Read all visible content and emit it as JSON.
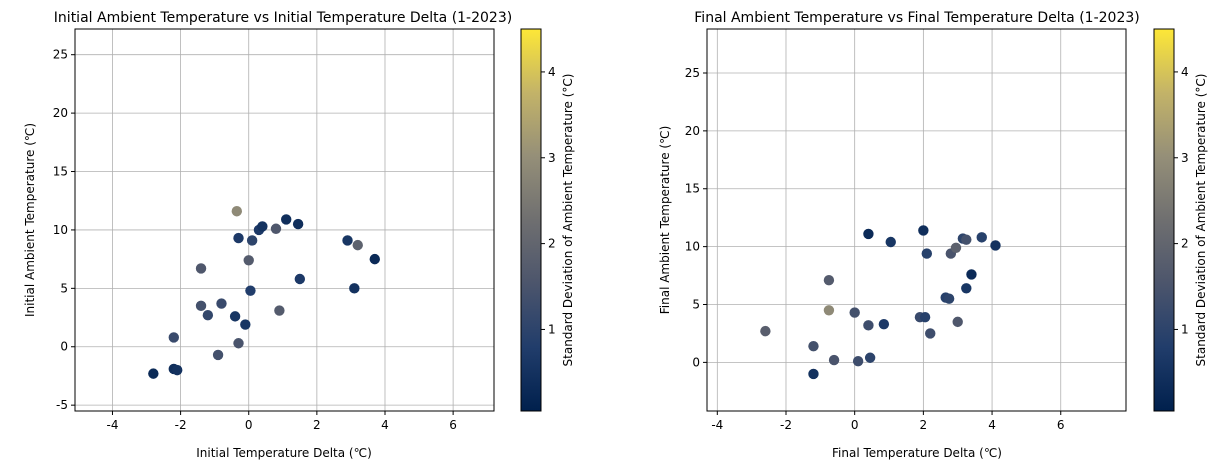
{
  "colors": {
    "cmap": [
      "#00204d",
      "#213d6b",
      "#4c556c",
      "#6f6f70",
      "#958f78",
      "#c3b368",
      "#fde737"
    ],
    "grid": "#b0b0b0",
    "axis": "#000000"
  },
  "colorbar": {
    "label": "Standard Deviation of Ambient Temperature (°C)",
    "range": [
      0.05,
      4.5
    ],
    "ticks": [
      "1",
      "2",
      "3",
      "4"
    ]
  },
  "chart_data": [
    {
      "type": "scatter",
      "title": "Initial Ambient Temperature vs Initial Temperature Delta (1-2023)",
      "xlabel": "Initial Temperature Delta (℃)",
      "ylabel": "Initial Ambient Temperature (℃)",
      "xlim": [
        -5.1,
        7.2
      ],
      "ylim": [
        -5.5,
        27.2
      ],
      "xticks": [
        "-4",
        "-2",
        "0",
        "2",
        "4",
        "6"
      ],
      "yticks": [
        "-5",
        "0",
        "5",
        "10",
        "15",
        "20",
        "25"
      ],
      "grid": true,
      "points": [
        {
          "x": -2.8,
          "y": -2.3,
          "c": 0.3
        },
        {
          "x": -2.2,
          "y": -1.9,
          "c": 0.4
        },
        {
          "x": -2.1,
          "y": -2.0,
          "c": 0.5
        },
        {
          "x": -2.2,
          "y": 0.8,
          "c": 1.2
        },
        {
          "x": -0.9,
          "y": -0.7,
          "c": 1.4
        },
        {
          "x": -0.3,
          "y": 0.3,
          "c": 1.5
        },
        {
          "x": -1.4,
          "y": 3.5,
          "c": 1.4
        },
        {
          "x": -1.2,
          "y": 2.7,
          "c": 1.1
        },
        {
          "x": -0.8,
          "y": 3.7,
          "c": 1.2
        },
        {
          "x": -0.4,
          "y": 2.6,
          "c": 0.6
        },
        {
          "x": -0.1,
          "y": 1.9,
          "c": 0.6
        },
        {
          "x": 0.05,
          "y": 4.8,
          "c": 0.8
        },
        {
          "x": 0.9,
          "y": 3.1,
          "c": 1.7
        },
        {
          "x": -1.4,
          "y": 6.7,
          "c": 1.6
        },
        {
          "x": 0.0,
          "y": 7.4,
          "c": 1.7
        },
        {
          "x": -0.3,
          "y": 9.3,
          "c": 0.7
        },
        {
          "x": 0.1,
          "y": 9.1,
          "c": 1.0
        },
        {
          "x": 0.3,
          "y": 10.0,
          "c": 0.7
        },
        {
          "x": 0.4,
          "y": 10.3,
          "c": 0.5
        },
        {
          "x": 0.8,
          "y": 10.1,
          "c": 1.6
        },
        {
          "x": 1.1,
          "y": 10.9,
          "c": 0.4
        },
        {
          "x": 1.45,
          "y": 10.5,
          "c": 0.4
        },
        {
          "x": -0.35,
          "y": 11.6,
          "c": 2.9
        },
        {
          "x": 1.5,
          "y": 5.8,
          "c": 0.7
        },
        {
          "x": 2.9,
          "y": 9.1,
          "c": 0.6
        },
        {
          "x": 3.2,
          "y": 8.7,
          "c": 1.9
        },
        {
          "x": 3.1,
          "y": 5.0,
          "c": 0.5
        },
        {
          "x": 3.7,
          "y": 7.5,
          "c": 0.3
        }
      ]
    },
    {
      "type": "scatter",
      "title": "Final Ambient Temperature vs Final Temperature Delta (1-2023)",
      "xlabel": "Final Temperature Delta (℃)",
      "ylabel": "Final Ambient Temperature (℃)",
      "xlim": [
        -4.3,
        7.9
      ],
      "ylim": [
        -4.2,
        28.8
      ],
      "xticks": [
        "-4",
        "-2",
        "0",
        "2",
        "4",
        "6"
      ],
      "yticks": [
        "0",
        "5",
        "10",
        "15",
        "20",
        "25"
      ],
      "grid": true,
      "points": [
        {
          "x": -2.6,
          "y": 2.7,
          "c": 1.8
        },
        {
          "x": -1.2,
          "y": 1.4,
          "c": 1.4
        },
        {
          "x": -1.2,
          "y": -1.0,
          "c": 0.5
        },
        {
          "x": -0.6,
          "y": 0.2,
          "c": 1.5
        },
        {
          "x": -0.75,
          "y": 7.1,
          "c": 1.7
        },
        {
          "x": -0.75,
          "y": 4.5,
          "c": 2.9
        },
        {
          "x": 0.0,
          "y": 4.3,
          "c": 1.4
        },
        {
          "x": 0.1,
          "y": 0.1,
          "c": 1.3
        },
        {
          "x": 0.4,
          "y": 3.2,
          "c": 1.3
        },
        {
          "x": 0.45,
          "y": 0.4,
          "c": 1.0
        },
        {
          "x": 0.4,
          "y": 11.1,
          "c": 0.3
        },
        {
          "x": 0.85,
          "y": 3.3,
          "c": 0.7
        },
        {
          "x": 1.05,
          "y": 10.4,
          "c": 0.6
        },
        {
          "x": 1.9,
          "y": 3.9,
          "c": 1.2
        },
        {
          "x": 2.05,
          "y": 3.9,
          "c": 0.9
        },
        {
          "x": 2.0,
          "y": 11.4,
          "c": 0.4
        },
        {
          "x": 2.1,
          "y": 9.4,
          "c": 0.9
        },
        {
          "x": 2.2,
          "y": 2.5,
          "c": 1.3
        },
        {
          "x": 2.65,
          "y": 5.6,
          "c": 0.9
        },
        {
          "x": 2.75,
          "y": 5.5,
          "c": 1.0
        },
        {
          "x": 2.8,
          "y": 9.4,
          "c": 1.5
        },
        {
          "x": 2.95,
          "y": 9.9,
          "c": 1.9
        },
        {
          "x": 3.0,
          "y": 3.5,
          "c": 1.6
        },
        {
          "x": 3.15,
          "y": 10.7,
          "c": 1.0
        },
        {
          "x": 3.25,
          "y": 10.6,
          "c": 1.4
        },
        {
          "x": 3.25,
          "y": 6.4,
          "c": 0.6
        },
        {
          "x": 3.4,
          "y": 7.6,
          "c": 0.3
        },
        {
          "x": 3.7,
          "y": 10.8,
          "c": 0.9
        },
        {
          "x": 4.1,
          "y": 10.1,
          "c": 0.5
        }
      ]
    }
  ]
}
